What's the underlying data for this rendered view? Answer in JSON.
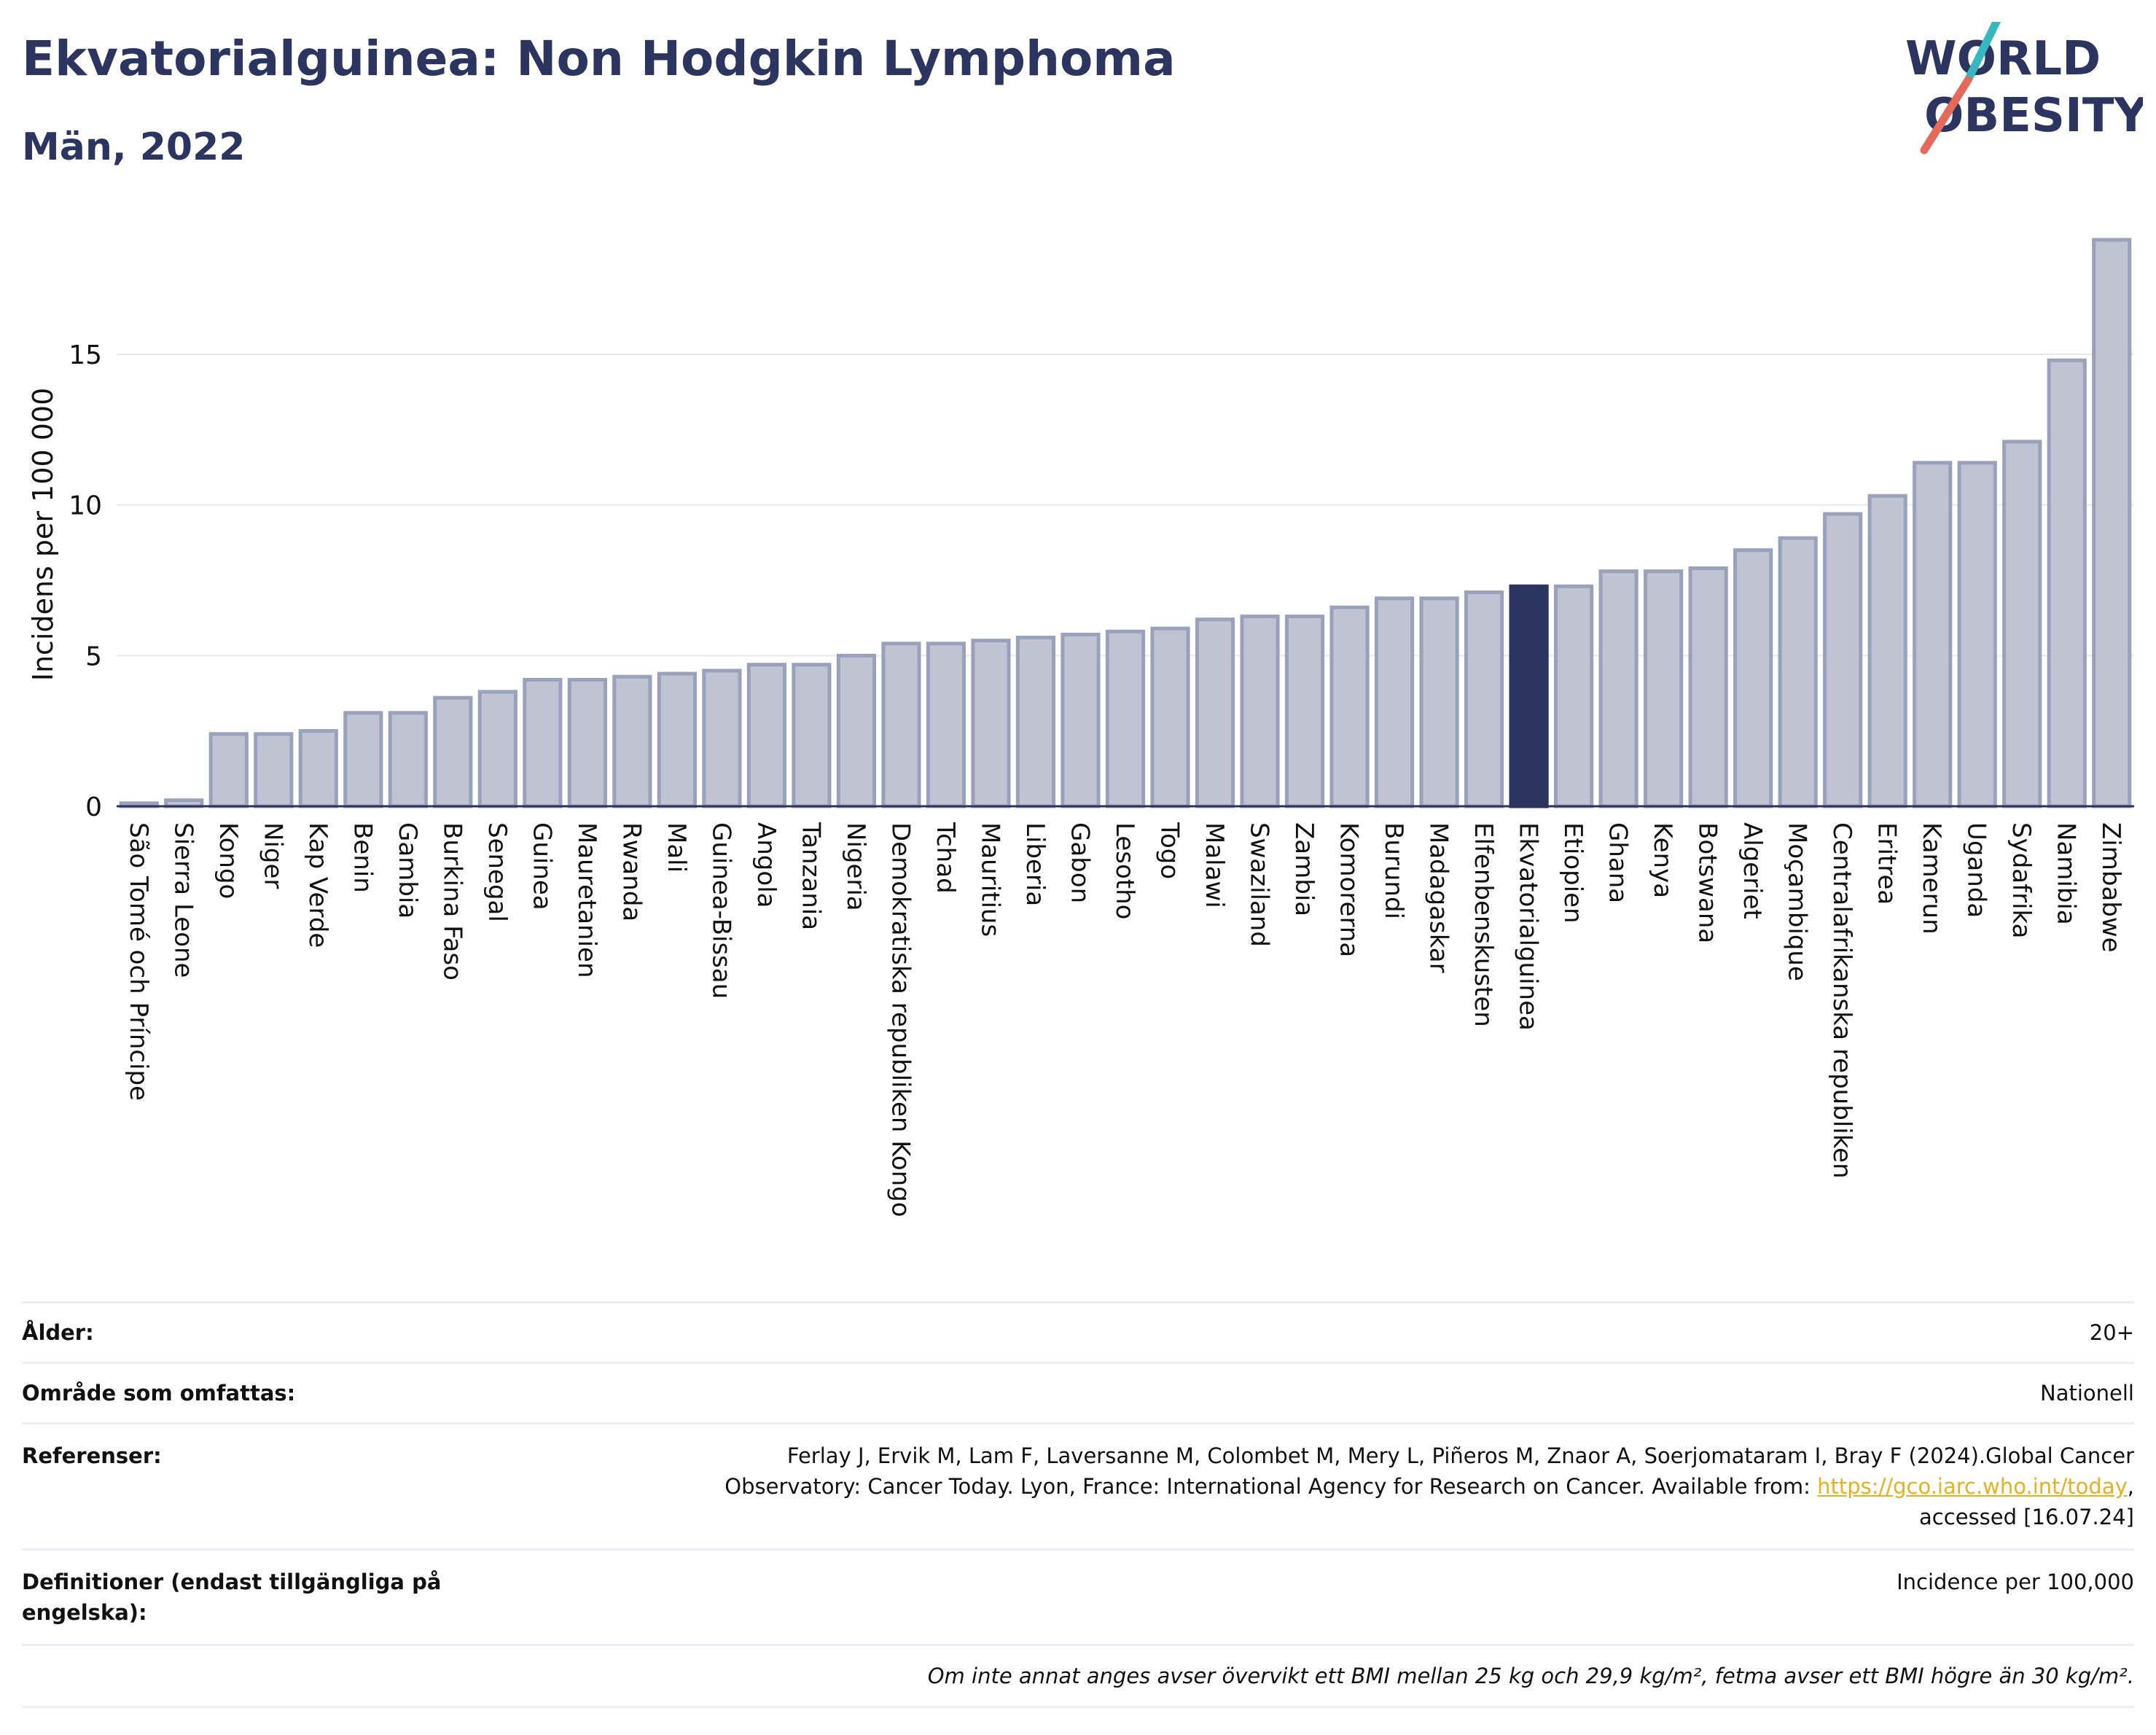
{
  "header": {
    "title": "Ekvatorialguinea: Non Hodgkin Lymphoma",
    "subtitle": "Män, 2022"
  },
  "logo": {
    "line1": "WORLD",
    "line2": "OBESITY",
    "accent_teal": "#37b8c0",
    "accent_red": "#e66a5b",
    "text_color": "#2b3560"
  },
  "chart_data": {
    "type": "bar",
    "title": "Ekvatorialguinea: Non Hodgkin Lymphoma",
    "subtitle": "Män, 2022",
    "ylabel": "Incidens per 100 000",
    "xlabel": "",
    "ylim": [
      0,
      19.5
    ],
    "yticks": [
      0,
      5,
      10,
      15
    ],
    "grid": true,
    "highlight": "Ekvatorialguinea",
    "colors": {
      "bar": "#bfc3d2",
      "bar_edge": "#9aa1bb",
      "highlight": "#2b3560",
      "grid": "#e6e8ef",
      "axis": "#2b3560"
    },
    "categories": [
      "São Tomé och Príncipe",
      "Sierra Leone",
      "Kongo",
      "Niger",
      "Kap Verde",
      "Benin",
      "Gambia",
      "Burkina Faso",
      "Senegal",
      "Guinea",
      "Mauretanien",
      "Rwanda",
      "Mali",
      "Guinea-Bissau",
      "Angola",
      "Tanzania",
      "Nigeria",
      "Demokratiska republiken Kongo",
      "Tchad",
      "Mauritius",
      "Liberia",
      "Gabon",
      "Lesotho",
      "Togo",
      "Malawi",
      "Swaziland",
      "Zambia",
      "Komorerna",
      "Burundi",
      "Madagaskar",
      "Elfenbenskusten",
      "Ekvatorialguinea",
      "Etiopien",
      "Ghana",
      "Kenya",
      "Botswana",
      "Algeriet",
      "Moçambique",
      "Centralafrikanska republiken",
      "Eritrea",
      "Kamerun",
      "Uganda",
      "Sydafrika",
      "Namibia",
      "Zimbabwe"
    ],
    "values": [
      0.1,
      0.2,
      2.4,
      2.4,
      2.5,
      3.1,
      3.1,
      3.6,
      3.8,
      4.2,
      4.2,
      4.3,
      4.4,
      4.5,
      4.7,
      4.7,
      5.0,
      5.4,
      5.4,
      5.5,
      5.6,
      5.7,
      5.8,
      5.9,
      6.2,
      6.3,
      6.3,
      6.6,
      6.9,
      6.9,
      7.1,
      7.3,
      7.3,
      7.8,
      7.8,
      7.9,
      8.5,
      8.9,
      9.7,
      10.3,
      11.4,
      11.4,
      12.1,
      14.8,
      18.8
    ]
  },
  "info": {
    "age_label": "Ålder:",
    "age_value": "20+",
    "area_label": "Område som omfattas:",
    "area_value": "Nationell",
    "refs_label": "Referenser:",
    "refs_text_1": "Ferlay J, Ervik M, Lam F, Laversanne M, Colombet M, Mery L, Piñeros M, Znaor A, Soerjomataram I, Bray F (2024).Global Cancer",
    "refs_text_2": "Observatory: Cancer Today. Lyon, France: International Agency for Research on Cancer. Available from:",
    "refs_link": "https://gco.iarc.who.int/today",
    "refs_text_3": ",",
    "refs_text_4": "accessed [16.07.24]",
    "defs_label_1": "Definitioner (endast tillgängliga på",
    "defs_label_2": "engelska):",
    "defs_value": "Incidence per 100,000",
    "note": "Om inte annat anges avser övervikt ett BMI mellan 25 kg och 29,9 kg/m², fetma avser ett BMI högre än 30 kg/m²."
  }
}
